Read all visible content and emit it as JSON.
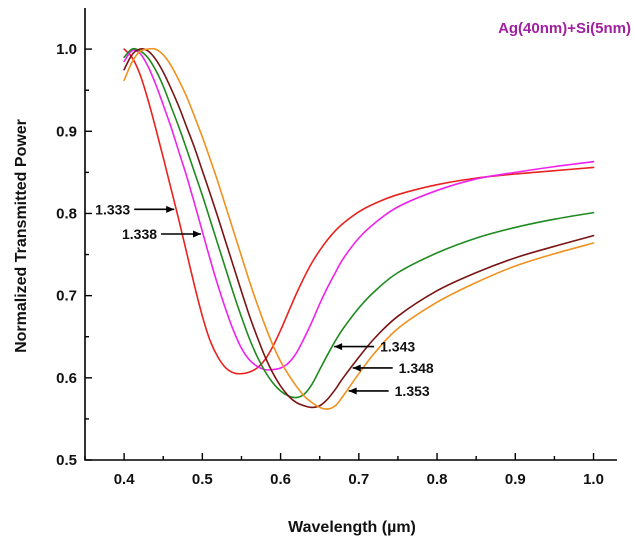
{
  "chart_data": {
    "type": "line",
    "title": "Ag(40nm)+Si(5nm)",
    "title_color": "#a020a0",
    "xlabel": "Wavelength (µm)",
    "ylabel": "Normalized Transmitted Power",
    "xlim": [
      0.35,
      1.03
    ],
    "ylim": [
      0.5,
      1.05
    ],
    "xticks": [
      "0.4",
      "0.5",
      "0.6",
      "0.7",
      "0.8",
      "0.9",
      "1.0"
    ],
    "yticks": [
      "0.5",
      "0.6",
      "0.7",
      "0.8",
      "0.9",
      "1.0"
    ],
    "grid": false,
    "series": [
      {
        "name": "1.333",
        "color": "#e8221e",
        "x": [
          0.4,
          0.41,
          0.42,
          0.43,
          0.44,
          0.45,
          0.46,
          0.47,
          0.48,
          0.49,
          0.5,
          0.51,
          0.52,
          0.53,
          0.54,
          0.55,
          0.56,
          0.57,
          0.58,
          0.59,
          0.6,
          0.61,
          0.62,
          0.63,
          0.64,
          0.65,
          0.66,
          0.67,
          0.68,
          0.7,
          0.72,
          0.75,
          0.8,
          0.85,
          0.9,
          0.95,
          1.0
        ],
        "y": [
          1.0,
          0.99,
          0.97,
          0.94,
          0.905,
          0.868,
          0.83,
          0.792,
          0.752,
          0.712,
          0.675,
          0.645,
          0.625,
          0.612,
          0.606,
          0.605,
          0.607,
          0.612,
          0.622,
          0.638,
          0.658,
          0.68,
          0.702,
          0.722,
          0.74,
          0.755,
          0.768,
          0.779,
          0.788,
          0.802,
          0.812,
          0.823,
          0.835,
          0.843,
          0.848,
          0.852,
          0.856
        ]
      },
      {
        "name": "1.338",
        "color": "#ee22ee",
        "x": [
          0.4,
          0.41,
          0.42,
          0.43,
          0.44,
          0.45,
          0.46,
          0.47,
          0.48,
          0.49,
          0.5,
          0.51,
          0.52,
          0.53,
          0.54,
          0.55,
          0.56,
          0.57,
          0.58,
          0.59,
          0.6,
          0.61,
          0.62,
          0.63,
          0.64,
          0.65,
          0.66,
          0.67,
          0.68,
          0.7,
          0.72,
          0.75,
          0.8,
          0.85,
          0.9,
          0.95,
          1.0
        ],
        "y": [
          0.985,
          0.998,
          0.995,
          0.98,
          0.958,
          0.932,
          0.905,
          0.875,
          0.845,
          0.812,
          0.778,
          0.744,
          0.712,
          0.683,
          0.657,
          0.636,
          0.622,
          0.614,
          0.61,
          0.61,
          0.612,
          0.618,
          0.63,
          0.648,
          0.668,
          0.69,
          0.71,
          0.728,
          0.745,
          0.77,
          0.788,
          0.808,
          0.828,
          0.842,
          0.85,
          0.857,
          0.863
        ]
      },
      {
        "name": "1.343",
        "color": "#1f8a1f",
        "x": [
          0.4,
          0.41,
          0.42,
          0.43,
          0.44,
          0.45,
          0.46,
          0.47,
          0.48,
          0.49,
          0.5,
          0.51,
          0.52,
          0.53,
          0.54,
          0.55,
          0.56,
          0.57,
          0.58,
          0.59,
          0.6,
          0.61,
          0.62,
          0.63,
          0.64,
          0.65,
          0.66,
          0.67,
          0.68,
          0.7,
          0.72,
          0.75,
          0.8,
          0.85,
          0.9,
          0.95,
          1.0
        ],
        "y": [
          0.99,
          1.0,
          0.998,
          0.99,
          0.975,
          0.955,
          0.93,
          0.905,
          0.878,
          0.85,
          0.822,
          0.792,
          0.762,
          0.732,
          0.702,
          0.674,
          0.648,
          0.626,
          0.608,
          0.594,
          0.584,
          0.578,
          0.576,
          0.58,
          0.592,
          0.61,
          0.628,
          0.645,
          0.66,
          0.685,
          0.705,
          0.728,
          0.752,
          0.77,
          0.783,
          0.793,
          0.801
        ]
      },
      {
        "name": "1.348",
        "color": "#7a1414",
        "x": [
          0.4,
          0.41,
          0.42,
          0.43,
          0.44,
          0.45,
          0.46,
          0.47,
          0.48,
          0.49,
          0.5,
          0.51,
          0.52,
          0.53,
          0.54,
          0.55,
          0.56,
          0.57,
          0.58,
          0.59,
          0.6,
          0.61,
          0.62,
          0.63,
          0.64,
          0.65,
          0.66,
          0.67,
          0.68,
          0.7,
          0.72,
          0.75,
          0.8,
          0.85,
          0.9,
          0.95,
          1.0
        ],
        "y": [
          0.975,
          0.993,
          1.0,
          0.998,
          0.988,
          0.972,
          0.952,
          0.93,
          0.905,
          0.88,
          0.852,
          0.824,
          0.795,
          0.765,
          0.735,
          0.705,
          0.676,
          0.65,
          0.626,
          0.606,
          0.59,
          0.578,
          0.57,
          0.566,
          0.564,
          0.566,
          0.574,
          0.586,
          0.6,
          0.625,
          0.648,
          0.675,
          0.706,
          0.728,
          0.746,
          0.76,
          0.773
        ]
      },
      {
        "name": "1.353",
        "color": "#f0901e",
        "x": [
          0.4,
          0.41,
          0.42,
          0.43,
          0.44,
          0.45,
          0.46,
          0.47,
          0.48,
          0.49,
          0.5,
          0.51,
          0.52,
          0.53,
          0.54,
          0.55,
          0.56,
          0.57,
          0.58,
          0.59,
          0.6,
          0.61,
          0.62,
          0.63,
          0.64,
          0.65,
          0.66,
          0.67,
          0.68,
          0.7,
          0.72,
          0.75,
          0.8,
          0.85,
          0.9,
          0.95,
          1.0
        ],
        "y": [
          0.962,
          0.984,
          0.997,
          1.0,
          1.0,
          0.993,
          0.98,
          0.962,
          0.942,
          0.918,
          0.893,
          0.866,
          0.838,
          0.808,
          0.778,
          0.748,
          0.718,
          0.69,
          0.664,
          0.64,
          0.62,
          0.604,
          0.59,
          0.578,
          0.57,
          0.564,
          0.562,
          0.566,
          0.578,
          0.605,
          0.63,
          0.66,
          0.692,
          0.716,
          0.736,
          0.751,
          0.764
        ]
      }
    ],
    "annotations": [
      {
        "label": "1.333",
        "series": "1.333",
        "side": "left",
        "at_y": 0.805
      },
      {
        "label": "1.338",
        "series": "1.338",
        "side": "left",
        "at_y": 0.775
      },
      {
        "label": "1.343",
        "series": "1.343",
        "side": "right",
        "at_y": 0.638
      },
      {
        "label": "1.348",
        "series": "1.348",
        "side": "right",
        "at_y": 0.612
      },
      {
        "label": "1.353",
        "series": "1.353",
        "side": "right",
        "at_y": 0.584
      }
    ]
  }
}
